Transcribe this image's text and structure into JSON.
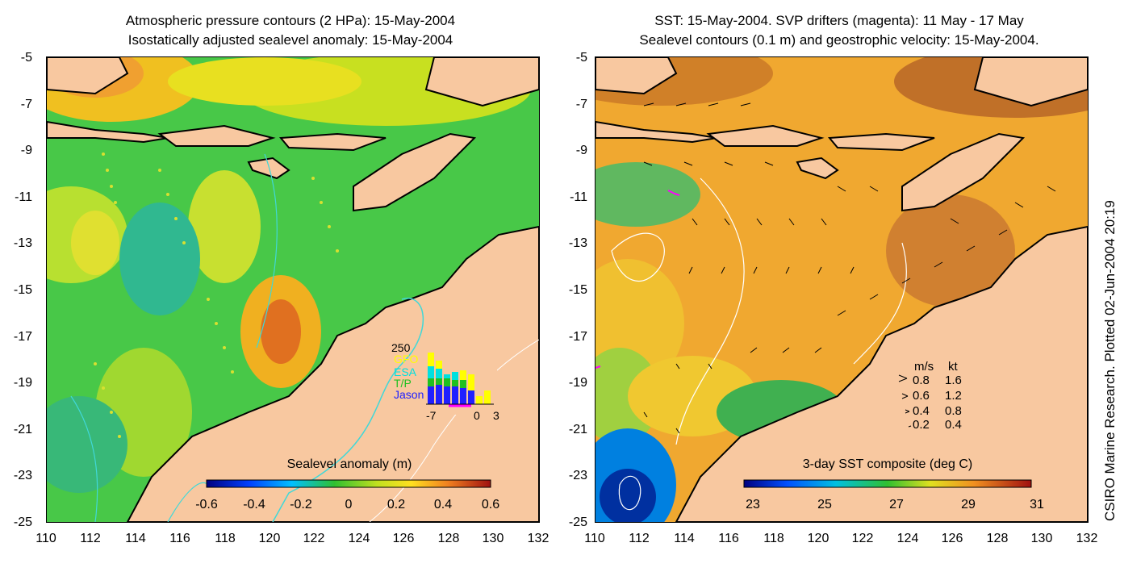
{
  "left_panel": {
    "title_line1": "Atmospheric pressure contours (2 HPa): 15-May-2004",
    "title_line2": "Isostatically adjusted sealevel anomaly: 15-May-2004",
    "colorbar_label": "Sealevel anomaly (m)",
    "colorbar_ticks": [
      "-0.6",
      "-0.4",
      "-0.2",
      "0",
      "0.2",
      "0.4",
      "0.6"
    ],
    "inset": {
      "ymax_label": "250",
      "series": [
        {
          "name": "GFO",
          "color": "#ffff00"
        },
        {
          "name": "ESA",
          "color": "#00e0e0"
        },
        {
          "name": "T/P",
          "color": "#20c020"
        },
        {
          "name": "Jason",
          "color": "#2020ff"
        }
      ],
      "x_labels": [
        "-7",
        "0",
        "3"
      ]
    }
  },
  "right_panel": {
    "title_line1": "SST: 15-May-2004. SVP drifters (magenta): 11 May - 17 May",
    "title_line2": "Sealevel contours (0.1 m) and geostrophic velocity: 15-May-2004.",
    "colorbar_label": "3-day SST composite (deg C)",
    "colorbar_ticks": [
      "23",
      "25",
      "27",
      "29",
      "31"
    ],
    "velocity_legend": {
      "header_ms": "m/s",
      "header_kt": "kt",
      "rows": [
        {
          "ms": "0.8",
          "kt": "1.6"
        },
        {
          "ms": "0.6",
          "kt": "1.2"
        },
        {
          "ms": "0.4",
          "kt": "0.8"
        },
        {
          "ms": "0.2",
          "kt": "0.4"
        }
      ]
    }
  },
  "axes": {
    "y_ticks": [
      "-5",
      "-7",
      "-9",
      "-11",
      "-13",
      "-15",
      "-17",
      "-19",
      "-21",
      "-23",
      "-25"
    ],
    "x_ticks": [
      "110",
      "112",
      "114",
      "116",
      "118",
      "120",
      "122",
      "124",
      "126",
      "128",
      "130",
      "132"
    ]
  },
  "credit": "CSIRO Marine Research. Plotted 02-Jun-2004 20:19",
  "colors": {
    "land": "#f8c8a0",
    "ocean_green": "#3cc83c",
    "sst_orange": "#f0a030",
    "contour_cyan": "#40d8d8"
  }
}
